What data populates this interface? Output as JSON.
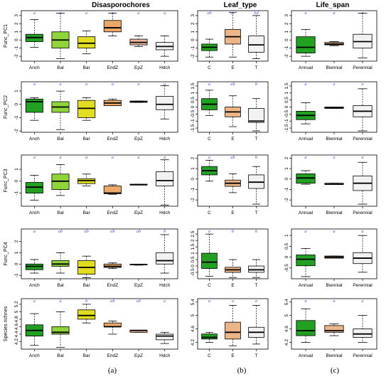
{
  "column_titles": [
    "Disasporochores",
    "Leaf_type",
    "Life_span"
  ],
  "panel_labels": [
    "(a)",
    "(b)",
    "(c)"
  ],
  "colors": {
    "green": "#22a022",
    "lightgreen": "#8ed43a",
    "yellow": "#e3dd22",
    "orange": "#eaa86a",
    "pinkorange": "#f0b49a",
    "lightorange": "#ecb588",
    "white": "#f2f2f2",
    "letter": "#4b5bd6"
  },
  "chart_data": [
    {
      "type": "boxplot",
      "row": 0,
      "col": 0,
      "ylabel": "Func_PC1",
      "categories": [
        "Anch",
        "Bal",
        "Bar",
        "EndZ",
        "EpZ",
        "Hdch"
      ],
      "yticks": [
        -2,
        -1,
        0,
        1,
        2,
        3
      ],
      "ylim": [
        -2.6,
        3.6
      ],
      "show_xticks": true,
      "letters": [
        "a",
        "a",
        "a",
        "a",
        "a",
        "a"
      ],
      "boxes": [
        {
          "color": "green",
          "min": -0.9,
          "q1": -0.2,
          "median": 0.3,
          "q3": 0.7,
          "max": 2.5
        },
        {
          "color": "lightgreen",
          "min": -2.3,
          "q1": -1.0,
          "median": 0.0,
          "q3": 1.0,
          "max": 3.3
        },
        {
          "color": "yellow",
          "min": -1.7,
          "q1": -1.0,
          "median": -0.4,
          "q3": 0.4,
          "max": 1.1
        },
        {
          "color": "orange",
          "min": 0.5,
          "q1": 1.0,
          "median": 1.5,
          "q3": 2.4,
          "max": 3.3
        },
        {
          "color": "pinkorange",
          "min": -0.8,
          "q1": -0.6,
          "median": -0.3,
          "q3": 0.1,
          "max": 0.5
        },
        {
          "color": "white",
          "min": -2.0,
          "q1": -1.2,
          "median": -0.8,
          "q3": -0.3,
          "max": 0.5
        }
      ]
    },
    {
      "type": "boxplot",
      "row": 0,
      "col": 1,
      "ylabel": "",
      "categories": [
        "C",
        "E",
        "T"
      ],
      "yticks": [
        -2,
        -1,
        0,
        1,
        2,
        3
      ],
      "ylim": [
        -2.6,
        3.6
      ],
      "show_xticks": true,
      "letters": [
        "ab",
        "ac",
        "bd"
      ],
      "boxes": [
        {
          "color": "green",
          "min": -2.1,
          "q1": -1.3,
          "median": -0.9,
          "q3": -0.5,
          "max": 0.1
        },
        {
          "color": "lightorange",
          "min": -2.1,
          "q1": -0.5,
          "median": 0.4,
          "q3": 1.3,
          "max": 3.4
        },
        {
          "color": "white",
          "min": -2.3,
          "q1": -1.5,
          "median": -0.6,
          "q3": 0.5,
          "max": 3.0
        }
      ]
    },
    {
      "type": "boxplot",
      "row": 0,
      "col": 2,
      "ylabel": "",
      "categories": [
        "Annual",
        "Biennial",
        "Perennial"
      ],
      "yticks": [
        -2,
        -1,
        0,
        1,
        2,
        3
      ],
      "ylim": [
        -2.6,
        3.6
      ],
      "show_xticks": true,
      "letters": [
        "a",
        "a",
        "a"
      ],
      "boxes": [
        {
          "color": "green",
          "min": -2.0,
          "q1": -1.6,
          "median": -0.9,
          "q3": 0.4,
          "max": 1.3
        },
        {
          "color": "lightorange",
          "min": -0.7,
          "q1": -0.6,
          "median": -0.5,
          "q3": -0.3,
          "max": -0.2
        },
        {
          "color": "white",
          "min": -2.2,
          "q1": -1.0,
          "median": -0.2,
          "q3": 0.7,
          "max": 3.3
        }
      ]
    },
    {
      "type": "boxplot",
      "row": 1,
      "col": 0,
      "ylabel": "Func_PC2",
      "categories": [
        "Anch",
        "Bal",
        "Bar",
        "EndZ",
        "EpZ",
        "Hdch"
      ],
      "yticks": [
        -2,
        -1,
        0,
        1
      ],
      "ylim": [
        -2.1,
        1.7
      ],
      "show_xticks": false,
      "letters": [
        "a",
        "a",
        "a",
        "a",
        "a",
        "a"
      ],
      "boxes": [
        {
          "color": "green",
          "min": -1.2,
          "q1": -0.6,
          "median": 0.2,
          "q3": 0.4,
          "max": 0.5
        },
        {
          "color": "lightgreen",
          "min": -1.9,
          "q1": -0.6,
          "median": -0.2,
          "q3": 0.2,
          "max": 1.0
        },
        {
          "color": "yellow",
          "min": -1.2,
          "q1": -1.0,
          "median": -0.3,
          "q3": 0.3,
          "max": 0.5
        },
        {
          "color": "orange",
          "min": -0.1,
          "q1": -0.1,
          "median": 0.1,
          "q3": 0.3,
          "max": 0.4
        },
        {
          "color": "pinkorange",
          "min": 0.15,
          "q1": 0.15,
          "median": 0.2,
          "q3": 0.25,
          "max": 0.25
        },
        {
          "color": "white",
          "min": -1.1,
          "q1": -0.4,
          "median": 0.0,
          "q3": 0.6,
          "max": 1.4
        }
      ]
    },
    {
      "type": "boxplot",
      "row": 1,
      "col": 1,
      "ylabel": "",
      "categories": [
        "C",
        "E",
        "T"
      ],
      "yticks": [
        -1.5,
        -1.0,
        -0.5,
        0.0,
        0.5,
        1.0,
        1.5
      ],
      "ylim": [
        -1.8,
        1.8
      ],
      "show_xticks": false,
      "letters": [
        "a",
        "ab",
        "b"
      ],
      "boxes": [
        {
          "color": "green",
          "min": -0.6,
          "q1": -0.2,
          "median": 0.2,
          "q3": 0.6,
          "max": 1.2
        },
        {
          "color": "lightorange",
          "min": -1.4,
          "q1": -0.7,
          "median": -0.35,
          "q3": 0.0,
          "max": 0.8
        },
        {
          "color": "white",
          "min": -1.7,
          "q1": -1.1,
          "median": -1.0,
          "q3": -0.1,
          "max": 0.6
        }
      ]
    },
    {
      "type": "boxplot",
      "row": 1,
      "col": 2,
      "ylabel": "",
      "categories": [
        "Annual",
        "Biennial",
        "Perennial"
      ],
      "yticks": [
        -1.5,
        -1.0,
        -0.5,
        0.0,
        0.5,
        1.0,
        1.5
      ],
      "ylim": [
        -1.8,
        1.8
      ],
      "show_xticks": false,
      "letters": [
        "a",
        "a",
        "a"
      ],
      "boxes": [
        {
          "color": "green",
          "min": -1.2,
          "q1": -0.9,
          "median": -0.6,
          "q3": -0.3,
          "max": 0.3
        },
        {
          "color": "lightorange",
          "min": -0.1,
          "q1": -0.1,
          "median": -0.05,
          "q3": 0.0,
          "max": 0.0
        },
        {
          "color": "white",
          "min": -1.7,
          "q1": -0.7,
          "median": -0.3,
          "q3": 0.1,
          "max": 1.3
        }
      ]
    },
    {
      "type": "boxplot",
      "row": 2,
      "col": 0,
      "ylabel": "Func_PC3",
      "categories": [
        "Anch",
        "Bal",
        "Bar",
        "EndZ",
        "EpZ",
        "Hdch"
      ],
      "yticks": [
        -1,
        0,
        1
      ],
      "ylim": [
        -2.1,
        2.2
      ],
      "show_xticks": false,
      "letters": [
        "a",
        "a",
        "a",
        "a",
        "a",
        "a"
      ],
      "boxes": [
        {
          "color": "green",
          "min": -1.6,
          "q1": -1.0,
          "median": -0.5,
          "q3": -0.1,
          "max": 0.5
        },
        {
          "color": "lightgreen",
          "min": -1.2,
          "q1": -0.7,
          "median": 0.0,
          "q3": 0.6,
          "max": 1.4
        },
        {
          "color": "yellow",
          "min": -0.4,
          "q1": -0.2,
          "median": 0.05,
          "q3": 0.2,
          "max": 0.6
        },
        {
          "color": "orange",
          "min": -1.1,
          "q1": -1.05,
          "median": -1.0,
          "q3": -0.4,
          "max": -0.3
        },
        {
          "color": "pinkorange",
          "min": -0.3,
          "q1": -0.3,
          "median": -0.3,
          "q3": -0.25,
          "max": -0.25
        },
        {
          "color": "white",
          "min": -2.0,
          "q1": -0.4,
          "median": 0.05,
          "q3": 0.8,
          "max": 1.8
        }
      ]
    },
    {
      "type": "boxplot",
      "row": 2,
      "col": 1,
      "ylabel": "",
      "categories": [
        "C",
        "E",
        "T"
      ],
      "yticks": [
        -2,
        -1,
        0,
        1,
        2
      ],
      "ylim": [
        -2.6,
        2.3
      ],
      "show_xticks": false,
      "letters": [
        "a",
        "ab",
        "b"
      ],
      "boxes": [
        {
          "color": "green",
          "min": -0.2,
          "q1": 0.4,
          "median": 0.8,
          "q3": 1.2,
          "max": 1.8
        },
        {
          "color": "lightorange",
          "min": -1.3,
          "q1": -0.7,
          "median": -0.4,
          "q3": -0.1,
          "max": 0.5
        },
        {
          "color": "white",
          "min": -2.4,
          "q1": -0.9,
          "median": -0.3,
          "q3": 0.4,
          "max": 1.2
        }
      ]
    },
    {
      "type": "boxplot",
      "row": 2,
      "col": 2,
      "ylabel": "",
      "categories": [
        "Annual",
        "Biennial",
        "Perennial"
      ],
      "yticks": [
        -2,
        -1,
        0,
        1,
        2
      ],
      "ylim": [
        -2.6,
        2.3
      ],
      "show_xticks": false,
      "letters": [
        "a",
        "a",
        "a"
      ],
      "boxes": [
        {
          "color": "green",
          "min": -0.5,
          "q1": -0.4,
          "median": 0.1,
          "q3": 0.5,
          "max": 0.8
        },
        {
          "color": "lightorange",
          "min": -0.5,
          "q1": -0.5,
          "median": -0.5,
          "q3": -0.4,
          "max": -0.4
        },
        {
          "color": "white",
          "min": -2.4,
          "q1": -1.1,
          "median": -0.4,
          "q3": 0.3,
          "max": 1.6
        }
      ]
    },
    {
      "type": "boxplot",
      "row": 3,
      "col": 0,
      "ylabel": "Func_PC4",
      "categories": [
        "Anch",
        "Bal",
        "Bar",
        "EndZ",
        "EpZ",
        "Hdch"
      ],
      "yticks": [
        -1,
        0,
        1,
        2
      ],
      "ylim": [
        -1.3,
        3.1
      ],
      "show_xticks": true,
      "letters": [
        "a",
        "ab",
        "ab",
        "ab",
        "ab",
        "b"
      ],
      "boxes": [
        {
          "color": "green",
          "min": -0.8,
          "q1": -0.5,
          "median": -0.2,
          "q3": 0.0,
          "max": 0.4
        },
        {
          "color": "lightgreen",
          "min": -0.8,
          "q1": -0.2,
          "median": 0.0,
          "q3": 0.3,
          "max": 1.0
        },
        {
          "color": "yellow",
          "min": -1.2,
          "q1": -0.9,
          "median": -0.3,
          "q3": 0.3,
          "max": 0.7
        },
        {
          "color": "orange",
          "min": -0.4,
          "q1": -0.3,
          "median": -0.2,
          "q3": 0.0,
          "max": 0.1
        },
        {
          "color": "pinkorange",
          "min": -0.1,
          "q1": -0.05,
          "median": -0.05,
          "q3": -0.02,
          "max": -0.02
        },
        {
          "color": "white",
          "min": -0.8,
          "q1": 0.0,
          "median": 0.3,
          "q3": 1.0,
          "max": 2.6
        }
      ]
    },
    {
      "type": "boxplot",
      "row": 3,
      "col": 1,
      "ylabel": "",
      "categories": [
        "C",
        "E",
        "T"
      ],
      "yticks": [
        -0.5,
        0.0,
        0.5,
        1.0,
        1.5,
        2.0,
        2.5
      ],
      "ylim": [
        -1.0,
        2.9
      ],
      "show_xticks": true,
      "letters": [
        "a",
        "b",
        "b"
      ],
      "boxes": [
        {
          "color": "green",
          "min": -0.8,
          "q1": -0.2,
          "median": 0.3,
          "q3": 1.0,
          "max": 2.5
        },
        {
          "color": "lightorange",
          "min": -0.9,
          "q1": -0.5,
          "median": -0.3,
          "q3": -0.1,
          "max": 0.5
        },
        {
          "color": "white",
          "min": -0.9,
          "q1": -0.5,
          "median": -0.3,
          "q3": 0.0,
          "max": 0.5
        }
      ]
    },
    {
      "type": "boxplot",
      "row": 3,
      "col": 2,
      "ylabel": "",
      "categories": [
        "Annual",
        "Biennial",
        "Perennial"
      ],
      "yticks": [
        -0.5,
        0.0,
        0.5,
        1.0
      ],
      "ylim": [
        -1.0,
        1.3
      ],
      "show_xticks": true,
      "letters": [
        "a",
        "a",
        "a"
      ],
      "boxes": [
        {
          "color": "green",
          "min": -0.9,
          "q1": -0.4,
          "median": -0.1,
          "q3": 0.1,
          "max": 0.4
        },
        {
          "color": "lightorange",
          "min": -0.05,
          "q1": -0.05,
          "median": 0.0,
          "q3": 0.05,
          "max": 0.05
        },
        {
          "color": "white",
          "min": -0.7,
          "q1": -0.3,
          "median": -0.05,
          "q3": 0.2,
          "max": 1.0
        }
      ]
    },
    {
      "type": "boxplot",
      "row": 4,
      "col": 0,
      "ylabel": "Species richnes",
      "categories": [
        "Anch",
        "Bal",
        "Bar",
        "EndZ",
        "EpZ",
        "Hdch"
      ],
      "yticks": [
        4.2,
        4.4,
        4.6,
        4.8,
        5.0,
        5.2
      ],
      "ylim": [
        4.0,
        5.35
      ],
      "show_xticks": true,
      "letters": [
        "a",
        "a",
        "b",
        "ab",
        "ab",
        "a"
      ],
      "boxes": [
        {
          "color": "green",
          "min": 4.1,
          "q1": 4.35,
          "median": 4.5,
          "q3": 4.65,
          "max": 4.95
        },
        {
          "color": "lightgreen",
          "min": 4.05,
          "q1": 4.4,
          "median": 4.45,
          "q3": 4.6,
          "max": 5.0
        },
        {
          "color": "yellow",
          "min": 4.7,
          "q1": 4.8,
          "median": 4.9,
          "q3": 5.05,
          "max": 5.2
        },
        {
          "color": "orange",
          "min": 4.4,
          "q1": 4.6,
          "median": 4.6,
          "q3": 4.7,
          "max": 4.75
        },
        {
          "color": "pinkorange",
          "min": 4.45,
          "q1": 4.45,
          "median": 4.5,
          "q3": 4.5,
          "max": 4.5
        },
        {
          "color": "white",
          "min": 4.15,
          "q1": 4.25,
          "median": 4.35,
          "q3": 4.4,
          "max": 4.45
        }
      ]
    },
    {
      "type": "boxplot",
      "row": 4,
      "col": 1,
      "ylabel": "",
      "categories": [
        "C",
        "E",
        "T"
      ],
      "yticks": [
        4.2,
        4.6,
        5.0,
        5.4
      ],
      "ylim": [
        4.0,
        5.5
      ],
      "show_xticks": true,
      "letters": [
        "a",
        "a",
        "a"
      ],
      "boxes": [
        {
          "color": "green",
          "min": 4.2,
          "q1": 4.3,
          "median": 4.35,
          "q3": 4.45,
          "max": 4.5
        },
        {
          "color": "lightorange",
          "min": 4.1,
          "q1": 4.3,
          "median": 4.5,
          "q3": 4.8,
          "max": 5.3
        },
        {
          "color": "white",
          "min": 4.15,
          "q1": 4.35,
          "median": 4.5,
          "q3": 4.65,
          "max": 5.3
        }
      ]
    },
    {
      "type": "boxplot",
      "row": 4,
      "col": 2,
      "ylabel": "",
      "categories": [
        "Annual",
        "Biennial",
        "Perennial"
      ],
      "yticks": [
        4.2,
        4.6,
        5.0,
        5.4
      ],
      "ylim": [
        4.0,
        5.5
      ],
      "show_xticks": true,
      "letters": [
        "a",
        "a",
        "a"
      ],
      "boxes": [
        {
          "color": "green",
          "min": 4.2,
          "q1": 4.4,
          "median": 4.55,
          "q3": 4.85,
          "max": 5.2
        },
        {
          "color": "lightorange",
          "min": 4.4,
          "q1": 4.5,
          "median": 4.55,
          "q3": 4.7,
          "max": 4.75
        },
        {
          "color": "white",
          "min": 4.2,
          "q1": 4.35,
          "median": 4.45,
          "q3": 4.6,
          "max": 5.0
        }
      ]
    }
  ]
}
